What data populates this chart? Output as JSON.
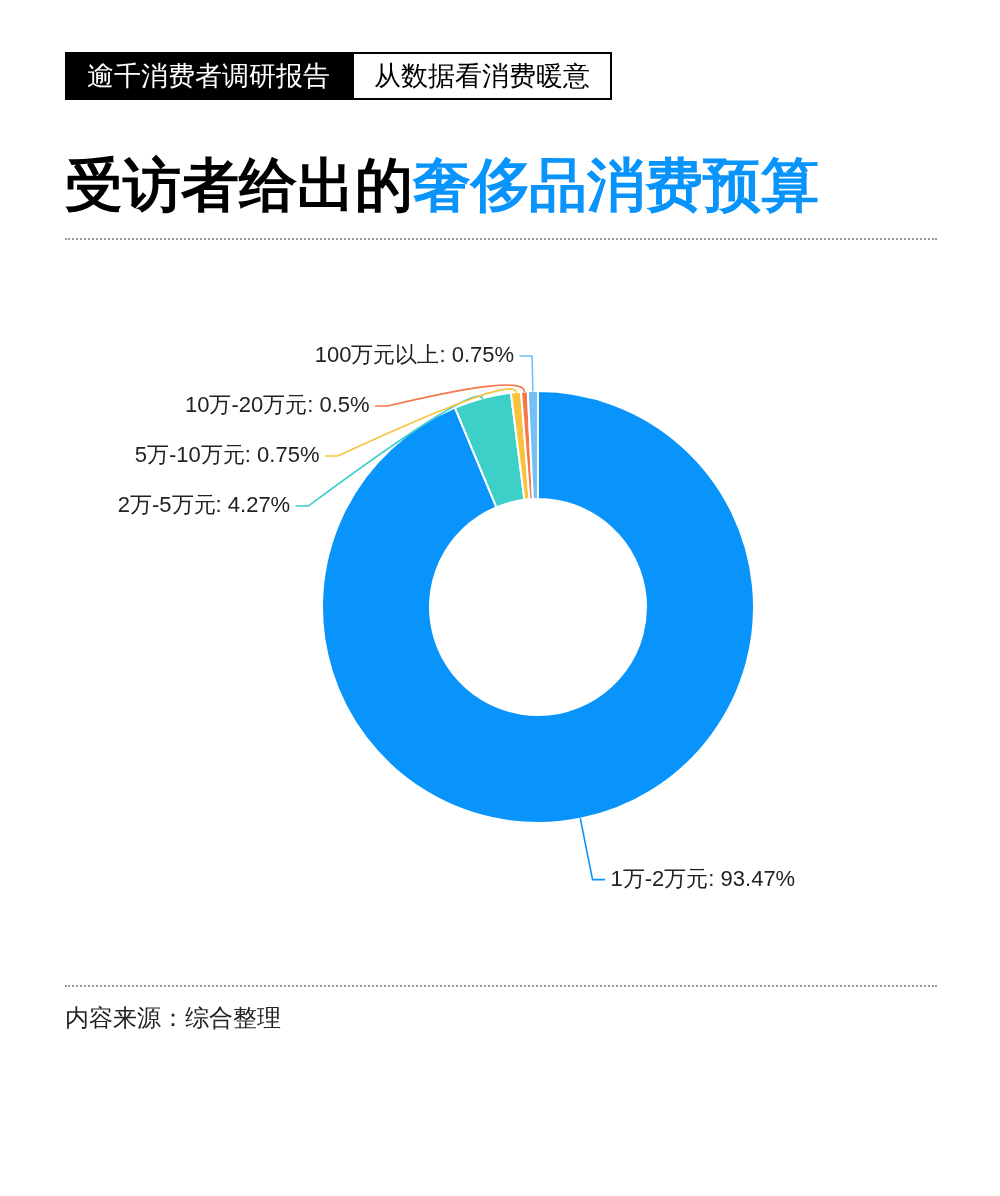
{
  "chart_data": {
    "type": "donut",
    "title": "受访者给出的奢侈品消费预算",
    "categories": [
      "1万-2万元",
      "2万-5万元",
      "5万-10万元",
      "10万-20万元",
      "100万元以上"
    ],
    "values": [
      93.47,
      4.27,
      0.75,
      0.5,
      0.75
    ],
    "value_labels": [
      "93.47%",
      "4.27%",
      "0.75%",
      "0.5%",
      "0.75%"
    ],
    "colors": [
      "#0894fb",
      "#3cd0c8",
      "#f9c23c",
      "#f6774a",
      "#74bff5"
    ],
    "legend": false,
    "annotations": [
      "逾千消费者调研报告",
      "从数据看消费暖意",
      "内容来源：综合整理"
    ]
  }
}
